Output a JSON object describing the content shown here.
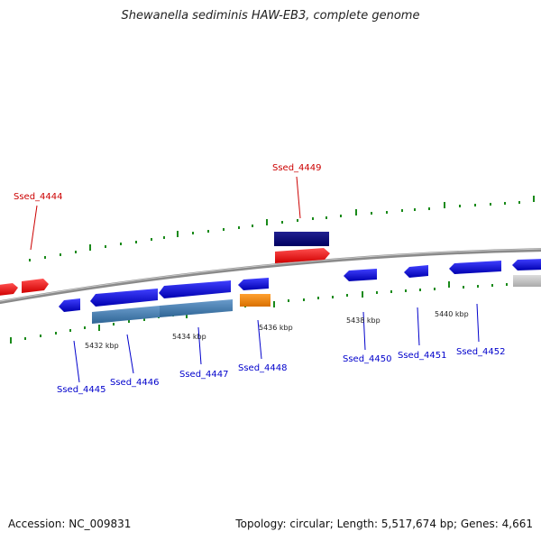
{
  "title": "Shewanella sediminis HAW-EB3, complete genome",
  "footer": {
    "accession": "Accession: NC_009831",
    "topology": "Topology: circular; Length: 5,517,674 bp; Genes: 4,661"
  },
  "scale_labels": [
    "5432 kbp",
    "5434 kbp",
    "5436 kbp",
    "5438 kbp",
    "5440 kbp"
  ],
  "gene_labels": {
    "ssed_4444": "Ssed_4444",
    "ssed_4449": "Ssed_4449",
    "ssed_4445": "Ssed_4445",
    "ssed_4446": "Ssed_4446",
    "ssed_4447": "Ssed_4447",
    "ssed_4448": "Ssed_4448",
    "ssed_4450": "Ssed_4450",
    "ssed_4451": "Ssed_4451",
    "ssed_4452": "Ssed_4452"
  },
  "colors": {
    "forward_gene": "#ff0000",
    "reverse_gene": "#0000ee",
    "rna_blue": "#4a7fb0",
    "rna_navy": "#0a0a7a",
    "orange_gene": "#ff8c00",
    "grey_gene": "#c0c0c0",
    "tick_green": "#1a8a1a",
    "backbone": "#888888",
    "label_red": "#cc0000",
    "label_blue": "#0000cc"
  }
}
